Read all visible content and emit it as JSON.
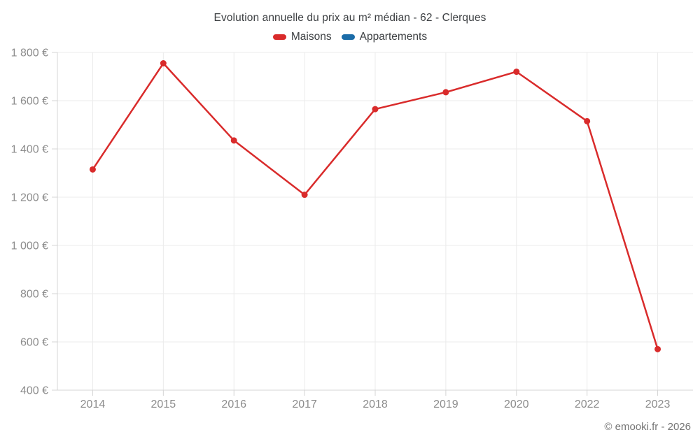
{
  "chart_data": {
    "type": "line",
    "title": "Evolution annuelle du prix au m² médian - 62 - Clerques",
    "categories": [
      "2014",
      "2015",
      "2016",
      "2017",
      "2018",
      "2019",
      "2020",
      "2022",
      "2023"
    ],
    "series": [
      {
        "name": "Maisons",
        "color": "#d92b2b",
        "values": [
          1315,
          1755,
          1435,
          1210,
          1565,
          1635,
          1720,
          1515,
          570
        ]
      },
      {
        "name": "Appartements",
        "color": "#1b6ca8",
        "values": []
      }
    ],
    "xlabel": "",
    "ylabel": "",
    "ylim": [
      400,
      1800
    ],
    "ytick_step": 200,
    "ytick_suffix": " €",
    "grid": true,
    "legend_position": "top",
    "watermark": "© emooki.fr - 2026"
  },
  "style": {
    "grid_color": "#ebebeb",
    "axis_color": "#d4d4d4",
    "tick_label_color": "#8c8c8c"
  }
}
